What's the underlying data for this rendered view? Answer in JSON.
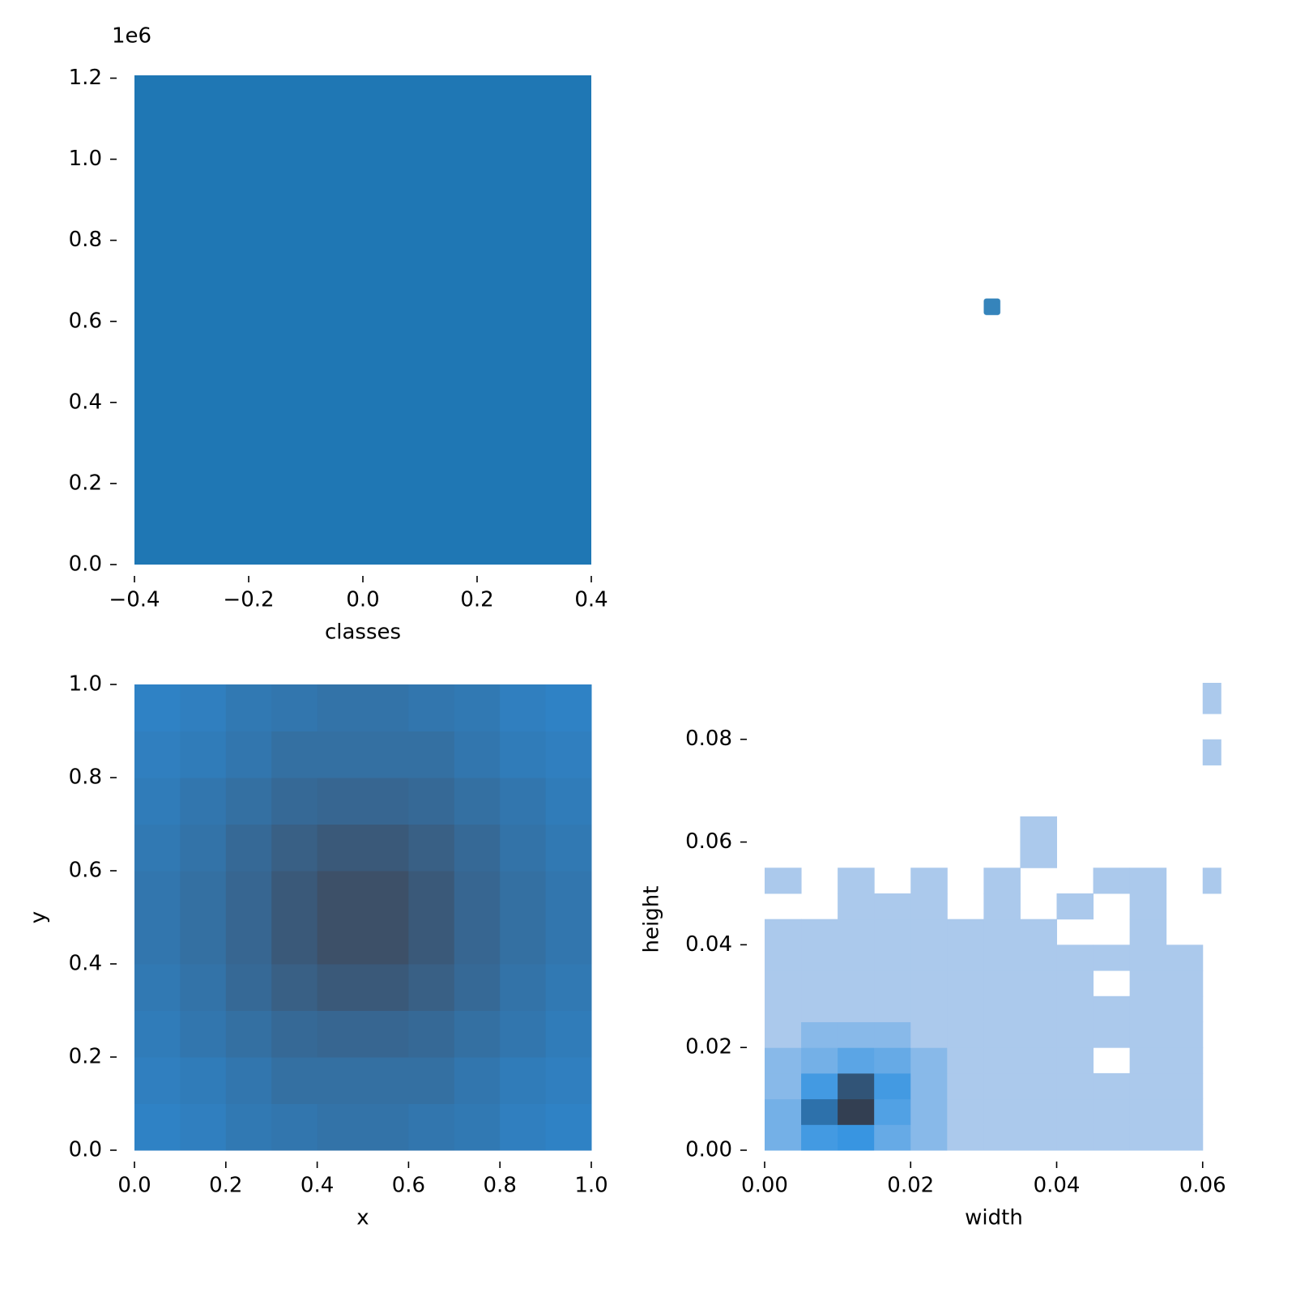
{
  "chart_data": [
    {
      "type": "histogram",
      "xlabel": "classes",
      "offset_label": "1e6",
      "color": "#1f77b4",
      "bins": [
        -0.4,
        0.4
      ],
      "counts": [
        1207000
      ],
      "xlim": [
        -0.4,
        0.4
      ],
      "ylim": [
        0,
        1207000
      ],
      "xticks": [
        {
          "value": -0.4,
          "label": "−0.4"
        },
        {
          "value": -0.2,
          "label": "−0.2"
        },
        {
          "value": 0,
          "label": "0.0"
        },
        {
          "value": 0.2,
          "label": "0.2"
        },
        {
          "value": 0.4,
          "label": "0.4"
        }
      ],
      "yticks": [
        {
          "value": 0,
          "label": "0.0"
        },
        {
          "value": 200000,
          "label": "0.2"
        },
        {
          "value": 400000,
          "label": "0.4"
        },
        {
          "value": 600000,
          "label": "0.6"
        },
        {
          "value": 800000,
          "label": "0.8"
        },
        {
          "value": 1000000,
          "label": "1.0"
        },
        {
          "value": 1200000,
          "label": "1.2"
        }
      ]
    },
    {
      "type": "scatter",
      "color": "#1f77b4",
      "x": [
        0.496
      ],
      "y": [
        0.527
      ],
      "xlim": [
        0,
        1
      ],
      "ylim": [
        0,
        1
      ]
    },
    {
      "type": "histogram2d",
      "xlabel": "x",
      "ylabel": "y",
      "colors": [
        "#2b8fdc",
        "#3d5068"
      ],
      "xbins": [
        0,
        0.1,
        0.2,
        0.3,
        0.4,
        0.5,
        0.6,
        0.7,
        0.8,
        0.9,
        1.0
      ],
      "ybins": [
        0,
        0.1,
        0.2,
        0.3,
        0.4,
        0.5,
        0.6,
        0.7,
        0.8,
        0.9,
        1.0
      ],
      "counts": [
        [
          0.2,
          0.25,
          0.35,
          0.4,
          0.45,
          0.45,
          0.4,
          0.35,
          0.25,
          0.2
        ],
        [
          0.25,
          0.3,
          0.4,
          0.5,
          0.5,
          0.5,
          0.5,
          0.4,
          0.3,
          0.25
        ],
        [
          0.3,
          0.4,
          0.5,
          0.6,
          0.65,
          0.65,
          0.6,
          0.5,
          0.4,
          0.3
        ],
        [
          0.35,
          0.45,
          0.6,
          0.75,
          0.85,
          0.85,
          0.75,
          0.6,
          0.45,
          0.35
        ],
        [
          0.4,
          0.5,
          0.65,
          0.85,
          1,
          1,
          0.85,
          0.65,
          0.5,
          0.4
        ],
        [
          0.4,
          0.5,
          0.65,
          0.85,
          1,
          1,
          0.85,
          0.65,
          0.5,
          0.4
        ],
        [
          0.35,
          0.45,
          0.6,
          0.75,
          0.85,
          0.85,
          0.75,
          0.6,
          0.45,
          0.35
        ],
        [
          0.3,
          0.4,
          0.5,
          0.6,
          0.65,
          0.65,
          0.6,
          0.5,
          0.4,
          0.3
        ],
        [
          0.25,
          0.3,
          0.4,
          0.5,
          0.5,
          0.5,
          0.5,
          0.4,
          0.3,
          0.25
        ],
        [
          0.2,
          0.25,
          0.35,
          0.4,
          0.45,
          0.45,
          0.4,
          0.35,
          0.25,
          0.2
        ]
      ],
      "xlim": [
        0,
        1
      ],
      "ylim": [
        0,
        1
      ],
      "xticks": [
        {
          "value": 0,
          "label": "0.0"
        },
        {
          "value": 0.2,
          "label": "0.2"
        },
        {
          "value": 0.4,
          "label": "0.4"
        },
        {
          "value": 0.6,
          "label": "0.6"
        },
        {
          "value": 0.8,
          "label": "0.8"
        },
        {
          "value": 1,
          "label": "1.0"
        }
      ],
      "yticks": [
        {
          "value": 0,
          "label": "0.0"
        },
        {
          "value": 0.2,
          "label": "0.2"
        },
        {
          "value": 0.4,
          "label": "0.4"
        },
        {
          "value": 0.6,
          "label": "0.6"
        },
        {
          "value": 0.8,
          "label": "0.8"
        },
        {
          "value": 1,
          "label": "1.0"
        }
      ]
    },
    {
      "type": "histogram2d",
      "xlabel": "width",
      "ylabel": "height",
      "colors": [
        "#abc9ec",
        "#2a8fe0",
        "#333f52"
      ],
      "xbins": [
        0,
        0.005,
        0.01,
        0.015,
        0.02,
        0.025,
        0.03,
        0.035,
        0.04,
        0.045,
        0.05,
        0.055,
        0.06,
        0.0625
      ],
      "ybins": [
        0,
        0.005,
        0.01,
        0.015,
        0.02,
        0.025,
        0.03,
        0.035,
        0.04,
        0.045,
        0.05,
        0.055,
        0.06,
        0.065,
        0.07,
        0.075,
        0.08,
        0.085,
        0.091
      ],
      "counts": [
        [
          3,
          8,
          10,
          4,
          2,
          1,
          1,
          1,
          1,
          1,
          1,
          1,
          0
        ],
        [
          3,
          20,
          40,
          6,
          2,
          1,
          1,
          1,
          1,
          1,
          1,
          1,
          0
        ],
        [
          2,
          8,
          30,
          8,
          2,
          1,
          1,
          1,
          1,
          1,
          1,
          1,
          0
        ],
        [
          2,
          3,
          5,
          4,
          2,
          1,
          1,
          1,
          1,
          0,
          1,
          1,
          0
        ],
        [
          1,
          2,
          2,
          2,
          1,
          1,
          1,
          1,
          1,
          1,
          1,
          1,
          0
        ],
        [
          1,
          1,
          1,
          1,
          1,
          1,
          1,
          1,
          1,
          1,
          1,
          1,
          0
        ],
        [
          1,
          1,
          1,
          1,
          1,
          1,
          1,
          1,
          1,
          0,
          1,
          1,
          0
        ],
        [
          1,
          1,
          1,
          1,
          1,
          1,
          1,
          1,
          1,
          1,
          1,
          1,
          0
        ],
        [
          1,
          1,
          1,
          1,
          1,
          1,
          1,
          1,
          0,
          0,
          1,
          0,
          0
        ],
        [
          0,
          0,
          1,
          1,
          1,
          0,
          1,
          0,
          1,
          0,
          1,
          0,
          0
        ],
        [
          1,
          0,
          1,
          0,
          1,
          0,
          1,
          0,
          0,
          1,
          1,
          0,
          1
        ],
        [
          0,
          0,
          0,
          0,
          0,
          0,
          0,
          1,
          0,
          0,
          0,
          0,
          0
        ],
        [
          0,
          0,
          0,
          0,
          0,
          0,
          0,
          1,
          0,
          0,
          0,
          0,
          0
        ],
        [
          0,
          0,
          0,
          0,
          0,
          0,
          0,
          0,
          0,
          0,
          0,
          0,
          0
        ],
        [
          0,
          0,
          0,
          0,
          0,
          0,
          0,
          0,
          0,
          0,
          0,
          0,
          0
        ],
        [
          0,
          0,
          0,
          0,
          0,
          0,
          0,
          0,
          0,
          0,
          0,
          0,
          1
        ],
        [
          0,
          0,
          0,
          0,
          0,
          0,
          0,
          0,
          0,
          0,
          0,
          0,
          0
        ],
        [
          0,
          0,
          0,
          0,
          0,
          0,
          0,
          0,
          0,
          0,
          0,
          0,
          1
        ]
      ],
      "xlim": [
        0,
        0.0628
      ],
      "ylim": [
        0,
        0.091
      ],
      "xticks": [
        {
          "value": 0,
          "label": "0.00"
        },
        {
          "value": 0.02,
          "label": "0.02"
        },
        {
          "value": 0.04,
          "label": "0.04"
        },
        {
          "value": 0.06,
          "label": "0.06"
        }
      ],
      "yticks": [
        {
          "value": 0,
          "label": "0.00"
        },
        {
          "value": 0.02,
          "label": "0.02"
        },
        {
          "value": 0.04,
          "label": "0.04"
        },
        {
          "value": 0.06,
          "label": "0.06"
        },
        {
          "value": 0.08,
          "label": "0.08"
        }
      ]
    }
  ]
}
